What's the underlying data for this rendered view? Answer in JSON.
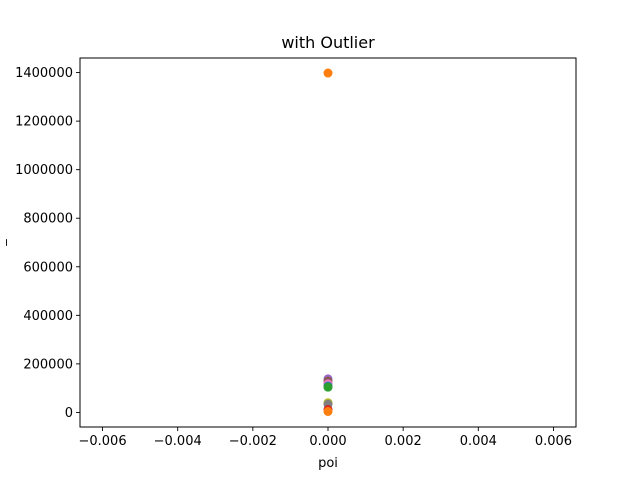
{
  "chart_data": {
    "type": "scatter",
    "title": "with Outlier",
    "xlabel": "poi",
    "ylabel": "_",
    "xlim": [
      -0.0066,
      0.0066
    ],
    "ylim": [
      -60000,
      1460000
    ],
    "xticks": [
      "−0.006",
      "−0.004",
      "−0.002",
      "0.000",
      "0.002",
      "0.004",
      "0.006"
    ],
    "xtick_values": [
      -0.006,
      -0.004,
      -0.002,
      0.0,
      0.002,
      0.004,
      0.006
    ],
    "yticks": [
      "0",
      "200000",
      "400000",
      "600000",
      "800000",
      "1000000",
      "1200000",
      "1400000"
    ],
    "ytick_values": [
      0,
      200000,
      400000,
      600000,
      800000,
      1000000,
      1200000,
      1400000
    ],
    "grid": false,
    "points": [
      {
        "x": 0.0,
        "y": 1398000,
        "color": "#ff7f0e"
      },
      {
        "x": 0.0,
        "y": 138000,
        "color": "#9467bd"
      },
      {
        "x": 0.0,
        "y": 128000,
        "color": "#8c564b"
      },
      {
        "x": 0.0,
        "y": 118000,
        "color": "#e377c2"
      },
      {
        "x": 0.0,
        "y": 108000,
        "color": "#1f77b4"
      },
      {
        "x": 0.0,
        "y": 104000,
        "color": "#2ca02c"
      },
      {
        "x": 0.0,
        "y": 40000,
        "color": "#bcbd22"
      },
      {
        "x": 0.0,
        "y": 34000,
        "color": "#7f7f7f"
      },
      {
        "x": 0.0,
        "y": 12000,
        "color": "#d62728"
      },
      {
        "x": 0.0,
        "y": 4000,
        "color": "#ff7f0e"
      }
    ]
  }
}
